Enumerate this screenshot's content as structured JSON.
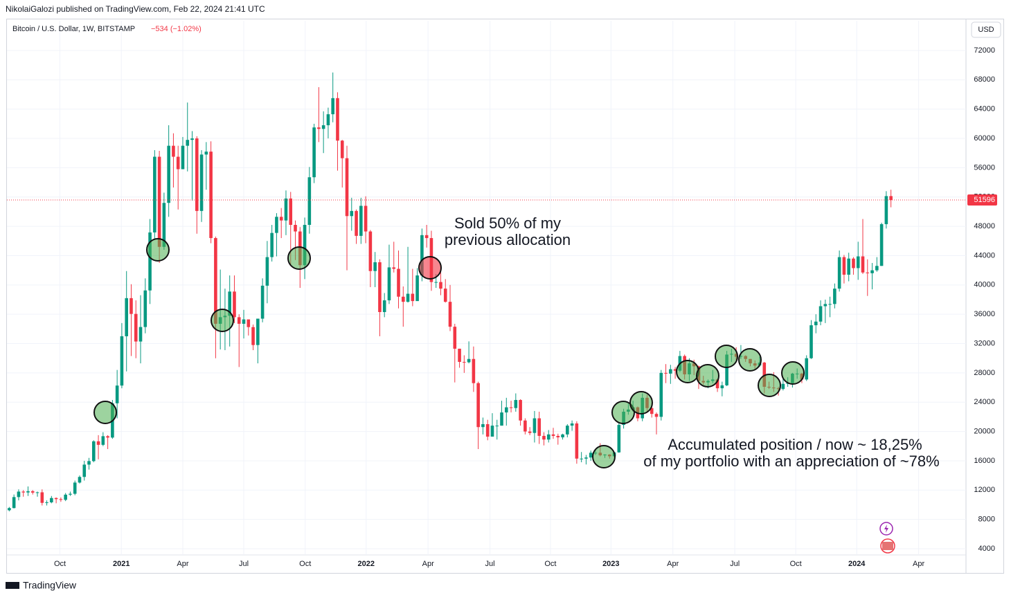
{
  "header": {
    "publisher": "NikolaiGalozi published on TradingView.com, Feb 22, 2024 21:41 UTC",
    "symbol": "Bitcoin / U.S. Dollar, 1W, BITSTAMP",
    "change": "−534 (−1.02%)",
    "currency": "USD",
    "brand": "TradingView"
  },
  "chart_data": {
    "type": "candlestick",
    "up_color": "#089981",
    "down_color": "#f23645",
    "grid": true,
    "xlim": [
      -0.5,
      204
    ],
    "ylim": [
      3150,
      76060
    ],
    "xticks": [
      {
        "value": 10.8,
        "label": "Oct"
      },
      {
        "value": 23.9,
        "label": "2021"
      },
      {
        "value": 37.0,
        "label": "Apr"
      },
      {
        "value": 50.0,
        "label": "Jul"
      },
      {
        "value": 63.1,
        "label": "Oct"
      },
      {
        "value": 76.1,
        "label": "2022"
      },
      {
        "value": 89.3,
        "label": "Apr"
      },
      {
        "value": 102.5,
        "label": "Jul"
      },
      {
        "value": 115.4,
        "label": "Oct"
      },
      {
        "value": 128.3,
        "label": "2023"
      },
      {
        "value": 141.5,
        "label": "Apr"
      },
      {
        "value": 154.7,
        "label": "Jul"
      },
      {
        "value": 167.7,
        "label": "Oct"
      },
      {
        "value": 180.7,
        "label": "2024"
      },
      {
        "value": 193.9,
        "label": "Apr"
      }
    ],
    "yticks": [
      4000,
      8000,
      12000,
      16000,
      20000,
      24000,
      28000,
      32000,
      36000,
      40000,
      44000,
      48000,
      52000,
      56000,
      60000,
      64000,
      68000,
      72000
    ],
    "open": [
      9250,
      9550,
      11050,
      11800,
      11680,
      11850,
      11660,
      11700,
      10260,
      10330,
      10920,
      10770,
      10670,
      11380,
      11500,
      13030,
      13800,
      15480,
      15960,
      18660,
      18180,
      19360,
      19170,
      23850,
      26270,
      33000,
      38200,
      36050,
      32280,
      34260,
      39250,
      47170,
      57500,
      45200,
      51200,
      59000,
      57500,
      55800,
      59000,
      59800,
      60000,
      50100,
      57800,
      58200,
      46400,
      34700,
      35600,
      35800,
      39100,
      35600,
      34700,
      35300,
      34250,
      31800,
      35400,
      39900,
      43800,
      47100,
      49300,
      48800,
      51800,
      48200,
      47300,
      42700,
      48200,
      54700,
      61500,
      61300,
      61800,
      63300,
      65500,
      59700,
      57300,
      49400,
      50100,
      46700,
      50800,
      47300,
      41900,
      43100,
      36300,
      37900,
      42400,
      42200,
      38400,
      37700,
      38800,
      37800,
      41300,
      46800,
      46400,
      40400,
      40400,
      39500,
      37700,
      34300,
      31300,
      29500,
      29450,
      29900,
      26600,
      20600,
      21000,
      19300,
      20800,
      20800,
      22600,
      23300,
      23200,
      24300,
      21500,
      20000,
      19800,
      21800,
      19400,
      18900,
      19600,
      19400,
      19200,
      19600,
      20800,
      21100,
      16300,
      16300,
      16450,
      17100,
      17100,
      16750,
      16850,
      16620,
      17150,
      20900,
      22700,
      23000,
      23300,
      21800,
      24600,
      23200,
      22400,
      22000,
      28000,
      27900,
      28500,
      28300,
      30300,
      27800,
      29300,
      28900,
      26900,
      26700,
      26900,
      27100,
      25900,
      26300,
      30500,
      30600,
      30200,
      30300,
      29900,
      29300,
      29000,
      29400,
      26100,
      26000,
      25900,
      25800,
      26500,
      26600,
      27900,
      27900,
      27100,
      30000,
      34500,
      35000,
      37100,
      37400,
      37400,
      39500,
      43800,
      41400,
      43600,
      42300,
      43900,
      41700,
      41600,
      42000,
      42600,
      48300,
      52130
    ],
    "high": [
      9700,
      11400,
      12100,
      12000,
      12500,
      12000,
      11800,
      12100,
      10600,
      11200,
      11000,
      11000,
      11600,
      11800,
      13300,
      14000,
      16000,
      16400,
      18800,
      19500,
      19900,
      19500,
      24300,
      28400,
      34800,
      41900,
      40100,
      37900,
      38600,
      40900,
      49000,
      58400,
      58300,
      52600,
      61800,
      60700,
      59000,
      60200,
      64900,
      61000,
      60300,
      58400,
      59500,
      59600,
      46600,
      42100,
      39500,
      41300,
      41300,
      36000,
      36600,
      35100,
      34600,
      35400,
      40900,
      46000,
      48200,
      49800,
      50500,
      52900,
      52700,
      48800,
      47900,
      49200,
      56100,
      62000,
      67000,
      63700,
      64200,
      69000,
      66300,
      59800,
      59000,
      51900,
      50300,
      51900,
      52100,
      47500,
      44500,
      43500,
      38900,
      45500,
      45900,
      44700,
      39800,
      45200,
      42200,
      42300,
      47700,
      48200,
      47400,
      41500,
      42900,
      40800,
      40000,
      34700,
      31300,
      30400,
      32300,
      31600,
      26800,
      21900,
      21600,
      22500,
      21600,
      24200,
      24600,
      24200,
      25200,
      24400,
      21800,
      20600,
      22800,
      22700,
      19900,
      20200,
      20500,
      19700,
      19700,
      21000,
      21500,
      21400,
      17200,
      16800,
      17400,
      17400,
      18400,
      16900,
      16900,
      17200,
      21200,
      23100,
      23800,
      24200,
      23400,
      25200,
      25000,
      23900,
      22600,
      28400,
      29200,
      29100,
      28800,
      31000,
      30500,
      30000,
      29800,
      29000,
      27600,
      27100,
      28400,
      27200,
      26800,
      31000,
      31300,
      31500,
      31800,
      30400,
      29900,
      29700,
      30200,
      29500,
      26800,
      28100,
      26100,
      27400,
      27400,
      28000,
      28600,
      28000,
      30400,
      35200,
      36000,
      37900,
      38000,
      38400,
      40200,
      44700,
      44100,
      44400,
      43800,
      45900,
      49000,
      43500,
      43000,
      43800,
      48500,
      52800,
      53000
    ],
    "low": [
      9100,
      9500,
      10600,
      11100,
      11200,
      11400,
      11100,
      9900,
      9900,
      10200,
      10200,
      10400,
      10500,
      11200,
      11300,
      12900,
      13300,
      14800,
      15800,
      16200,
      18000,
      17600,
      19000,
      21800,
      25900,
      28200,
      30300,
      30000,
      29300,
      33400,
      37400,
      46200,
      43000,
      44800,
      49300,
      53300,
      50300,
      56300,
      55500,
      51500,
      47000,
      48600,
      53000,
      45700,
      30000,
      31200,
      31100,
      31600,
      34800,
      28800,
      32700,
      33100,
      31100,
      29300,
      34900,
      37500,
      43200,
      43900,
      46400,
      46800,
      42800,
      43400,
      39600,
      40800,
      47000,
      53900,
      59500,
      58000,
      60000,
      62200,
      55600,
      53300,
      42000,
      47400,
      45600,
      45600,
      45700,
      39700,
      39700,
      33000,
      35600,
      37400,
      41700,
      36800,
      34300,
      37600,
      37100,
      38100,
      40500,
      45100,
      39200,
      39600,
      38600,
      37600,
      33700,
      26700,
      28700,
      28000,
      29300,
      25400,
      17600,
      19600,
      18800,
      19300,
      18900,
      20800,
      20800,
      22600,
      22700,
      20800,
      19600,
      19500,
      18500,
      18300,
      18100,
      18500,
      19000,
      18200,
      18900,
      19200,
      20100,
      15600,
      15800,
      15500,
      16000,
      16800,
      16600,
      16400,
      16300,
      16500,
      17100,
      20400,
      22300,
      22700,
      21400,
      21400,
      22700,
      21900,
      19600,
      21500,
      26600,
      26500,
      27200,
      28100,
      27100,
      26900,
      27700,
      25800,
      26400,
      25900,
      26600,
      25400,
      24800,
      26200,
      29500,
      29700,
      29900,
      29500,
      28900,
      28600,
      28800,
      25200,
      25800,
      25400,
      24900,
      25600,
      26100,
      26000,
      27200,
      26600,
      26900,
      29900,
      33400,
      34500,
      34800,
      35600,
      36800,
      39100,
      40200,
      40500,
      41400,
      40700,
      41500,
      38500,
      39400,
      41800,
      42600,
      47700,
      50600
    ],
    "close": [
      9550,
      11050,
      11800,
      11680,
      11850,
      11660,
      11700,
      10260,
      10330,
      10920,
      10770,
      10670,
      11380,
      11500,
      13030,
      13800,
      15480,
      15960,
      18660,
      18180,
      19360,
      19170,
      23850,
      26270,
      33000,
      38200,
      36050,
      32280,
      34260,
      39250,
      47170,
      57500,
      45200,
      51200,
      59000,
      57500,
      55800,
      59000,
      59800,
      60000,
      50100,
      57800,
      58200,
      46400,
      34700,
      35600,
      35800,
      39100,
      35600,
      34700,
      35300,
      34250,
      31800,
      35400,
      39900,
      43800,
      47100,
      49300,
      48800,
      51800,
      48200,
      47300,
      42700,
      48200,
      54700,
      61500,
      61300,
      61800,
      63300,
      65500,
      59700,
      57300,
      49400,
      50100,
      46700,
      50800,
      47300,
      41900,
      43100,
      36300,
      37900,
      42400,
      42200,
      38400,
      37700,
      38800,
      37800,
      41300,
      46800,
      46400,
      40400,
      40400,
      39500,
      37700,
      34300,
      31300,
      29500,
      29450,
      29900,
      26600,
      20600,
      21000,
      19300,
      20800,
      20800,
      22600,
      23300,
      23200,
      24300,
      21500,
      20000,
      19800,
      21800,
      19400,
      18900,
      19600,
      19400,
      19200,
      19600,
      20800,
      21100,
      16300,
      16300,
      16450,
      17100,
      17100,
      16750,
      16850,
      16620,
      17150,
      20900,
      22700,
      23000,
      23300,
      21800,
      24600,
      23200,
      22400,
      22000,
      28000,
      27900,
      28500,
      28300,
      30300,
      27800,
      29300,
      28900,
      26900,
      26700,
      26900,
      27100,
      25900,
      26300,
      30500,
      30600,
      30200,
      30300,
      29900,
      29300,
      29000,
      29400,
      26100,
      26000,
      25900,
      25800,
      26500,
      26600,
      27900,
      27900,
      27100,
      30000,
      34500,
      35000,
      37100,
      37400,
      37400,
      39500,
      43800,
      41400,
      43600,
      42300,
      43900,
      41700,
      41600,
      42000,
      42600,
      48300,
      52130,
      51596
    ],
    "annotations": [
      [
        "Sold 50% of my",
        "previous allocation"
      ],
      [
        "Accumulated position / now ~ 18,25%",
        "of my portfolio with an appreciation of ~78%"
      ]
    ]
  }
}
